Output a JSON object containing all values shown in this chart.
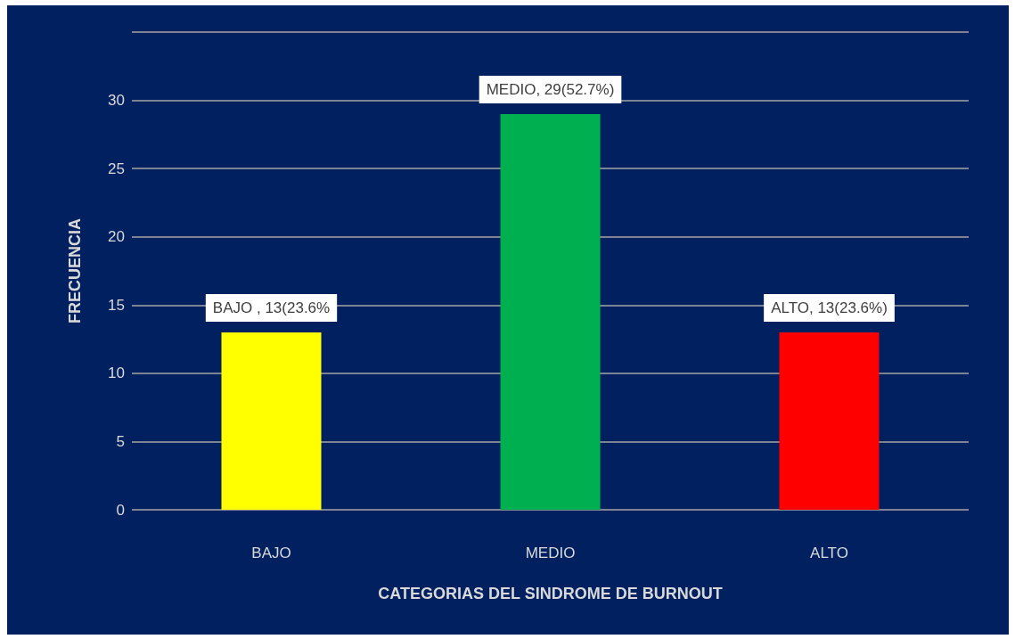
{
  "chart_data": {
    "type": "bar",
    "xlabel": "CATEGORIAS DEL SINDROME DE BURNOUT",
    "ylabel": "FRECUENCIA",
    "categories": [
      "BAJO",
      "MEDIO",
      "ALTO"
    ],
    "values": [
      13,
      29,
      13
    ],
    "colors": [
      "#ffff00",
      "#00b050",
      "#ff0000"
    ],
    "value_labels": [
      "BAJO , 13(23.6%",
      "MEDIO, 29(52.7%)",
      "ALTO, 13(23.6%)"
    ],
    "ylim": [
      0,
      35
    ],
    "yticks": [
      0,
      5,
      10,
      15,
      20,
      25,
      30,
      {
        "value": 35,
        "label": null
      }
    ],
    "grid": true
  }
}
